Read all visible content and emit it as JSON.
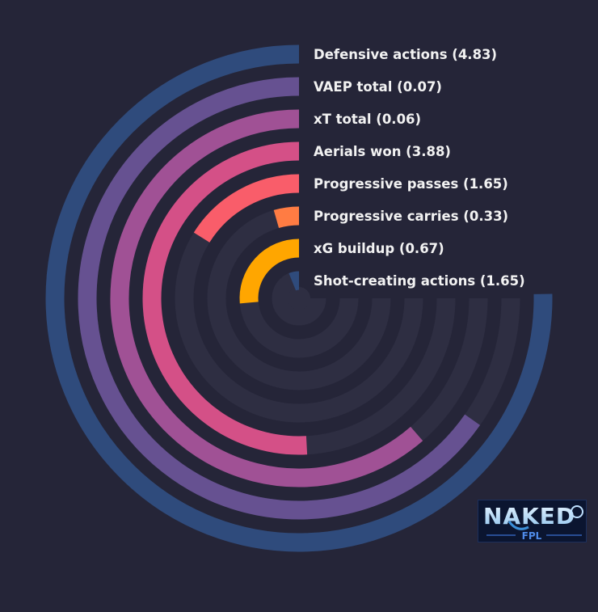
{
  "chart_data": {
    "type": "radial-bar",
    "title": "",
    "series": [
      {
        "label": "Defensive actions (4.83)",
        "value": 4.83,
        "sweep_deg": 271,
        "color": "#2f4b7c"
      },
      {
        "label": "VAEP total (0.07)",
        "value": 0.07,
        "sweep_deg": 235,
        "color": "#665191"
      },
      {
        "label": "xT total (0.06)",
        "value": 0.06,
        "sweep_deg": 221,
        "color": "#a05195"
      },
      {
        "label": "Aerials won (3.88)",
        "value": 3.88,
        "sweep_deg": 183,
        "color": "#d45087"
      },
      {
        "label": "Progressive passes (1.65)",
        "value": 1.65,
        "sweep_deg": 58,
        "color": "#f95d6a"
      },
      {
        "label": "Progressive carries (0.33)",
        "value": 0.33,
        "sweep_deg": 16,
        "color": "#ff7c43"
      },
      {
        "label": "xG buildup (0.67)",
        "value": 0.67,
        "sweep_deg": 95,
        "color": "#ffa600"
      },
      {
        "label": "Shot-creating actions (1.65)",
        "value": 1.65,
        "sweep_deg": 22,
        "color": "#2f4b7c"
      }
    ],
    "track_color": "#2e2e42",
    "background": "#252538",
    "label_color": "#f2f2f2"
  },
  "logo": {
    "text": "NAKED",
    "subtext": "FPL"
  }
}
